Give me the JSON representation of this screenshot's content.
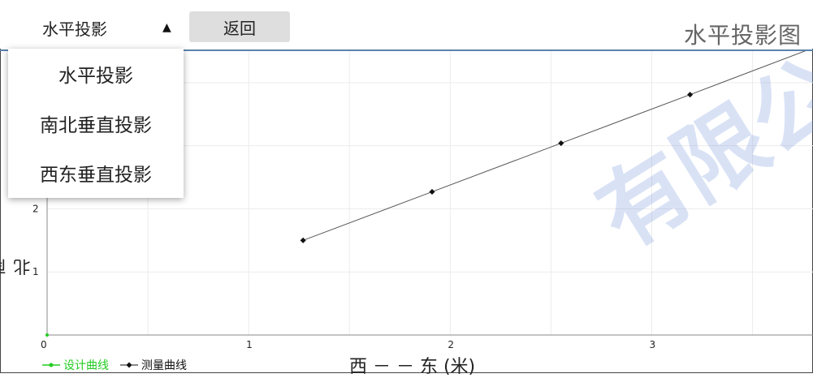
{
  "toolbar": {
    "mode_select_value": "水平投影",
    "back_label": "返回",
    "page_title": "水平投影图"
  },
  "dropdown": {
    "options": [
      "水平投影",
      "南北垂直投影",
      "西东垂直投影"
    ]
  },
  "colors": {
    "title_rule": "#5b82ad",
    "design_series": "#22cc22",
    "measured_series": "#111111",
    "grid": "#ececec"
  },
  "chart_data": {
    "type": "line",
    "xlabel": "西 － － 东 (米)",
    "ylabel": "南 － － 北",
    "x_ticks": [
      0,
      1,
      2,
      3
    ],
    "y_ticks": [
      1,
      2
    ],
    "xlim": [
      0,
      3.8
    ],
    "ylim": [
      0,
      4.5
    ],
    "grid": true,
    "legend_placement": "bottom-left",
    "series": [
      {
        "name": "设计曲线",
        "x": [],
        "y": []
      },
      {
        "name": "测量曲线",
        "x": [
          1.27,
          1.91,
          2.55,
          3.19,
          3.8
        ],
        "y": [
          1.5,
          2.27,
          3.04,
          3.81,
          4.55
        ]
      }
    ]
  },
  "watermark": "有限公司 CO.,"
}
